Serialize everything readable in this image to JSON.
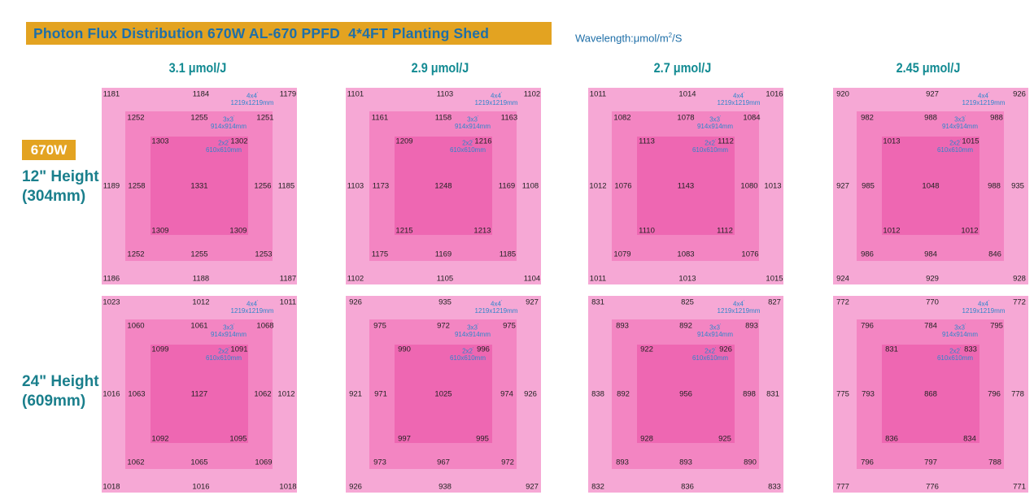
{
  "title": "Photon Flux Distribution 670W AL-670 PPFD  4*4FT Planting Shed",
  "units_label": "Wavelength:μmol/m",
  "units_sup": "2",
  "units_suffix": "/S",
  "wattage": "670W",
  "heights": [
    {
      "line1": "12\" Height",
      "line2": "(304mm)"
    },
    {
      "line1": "24\" Height",
      "line2": "(609mm)"
    }
  ],
  "area_labels": {
    "a4": {
      "name": "4x4",
      "sup": "'",
      "mm": "1219x1219mm"
    },
    "a3": {
      "name": "3x3",
      "sup": "'",
      "mm": "914x914mm"
    },
    "a2": {
      "name": "2x2",
      "sup": "'",
      "mm": "610x610mm"
    }
  },
  "colors": {
    "title_bg": "#e3a321",
    "title_text": "#1f6fa8",
    "efficiency_text": "#128a92",
    "height_text": "#1a7f8c",
    "area_4x4": "#f6a8d5",
    "area_3x3": "#f385c2",
    "area_2x2": "#ee67b2",
    "size_label": "#2f86cc"
  },
  "chart_data": {
    "type": "heatmap",
    "description_keys": "Each grid lists PPFD readings (μmol/m²/S) at measurement points of 4x4, 3x3 and 2x2 ft areas",
    "columns": [
      "3.1 μmol/J",
      "2.9 μmol/J",
      "2.7 μmol/J",
      "2.45 μmol/J"
    ],
    "rows": [
      "12\" Height (304mm)",
      "24\" Height (609mm)"
    ],
    "point_order": [
      "o_tl",
      "o_tc",
      "o_tr",
      "m_tl",
      "m_tc",
      "m_tr",
      "i_tl",
      "i_tr",
      "o_ml",
      "m_ml",
      "center",
      "m_mr",
      "o_mr",
      "i_bl",
      "i_br",
      "m_bl",
      "m_bc",
      "m_br",
      "o_bl",
      "o_bc",
      "o_br"
    ],
    "grids": [
      [
        [
          1181,
          1184,
          1179,
          1252,
          1255,
          1251,
          1303,
          1302,
          1189,
          1258,
          1331,
          1256,
          1185,
          1309,
          1309,
          1252,
          1255,
          1253,
          1186,
          1188,
          1187
        ],
        [
          1101,
          1103,
          1102,
          1161,
          1158,
          1163,
          1209,
          1216,
          1103,
          1173,
          1248,
          1169,
          1108,
          1215,
          1213,
          1175,
          1169,
          1185,
          1102,
          1105,
          1104
        ],
        [
          1011,
          1014,
          1016,
          1082,
          1078,
          1084,
          1113,
          1112,
          1012,
          1076,
          1143,
          1080,
          1013,
          1110,
          1112,
          1079,
          1083,
          1076,
          1011,
          1013,
          1015
        ],
        [
          920,
          927,
          926,
          982,
          988,
          988,
          1013,
          1015,
          927,
          985,
          1048,
          988,
          935,
          1012,
          1012,
          986,
          984,
          846,
          924,
          929,
          928
        ]
      ],
      [
        [
          1023,
          1012,
          1011,
          1060,
          1061,
          1068,
          1099,
          1091,
          1016,
          1063,
          1127,
          1062,
          1012,
          1092,
          1095,
          1062,
          1065,
          1069,
          1018,
          1016,
          1018
        ],
        [
          926,
          935,
          927,
          975,
          972,
          975,
          990,
          996,
          921,
          971,
          1025,
          974,
          926,
          997,
          995,
          973,
          967,
          972,
          926,
          938,
          927
        ],
        [
          831,
          825,
          827,
          893,
          892,
          893,
          922,
          926,
          838,
          892,
          956,
          898,
          831,
          928,
          925,
          893,
          893,
          890,
          832,
          836,
          833
        ],
        [
          772,
          770,
          772,
          796,
          784,
          795,
          831,
          833,
          775,
          793,
          868,
          796,
          778,
          836,
          834,
          796,
          797,
          788,
          777,
          776,
          771
        ]
      ]
    ]
  }
}
